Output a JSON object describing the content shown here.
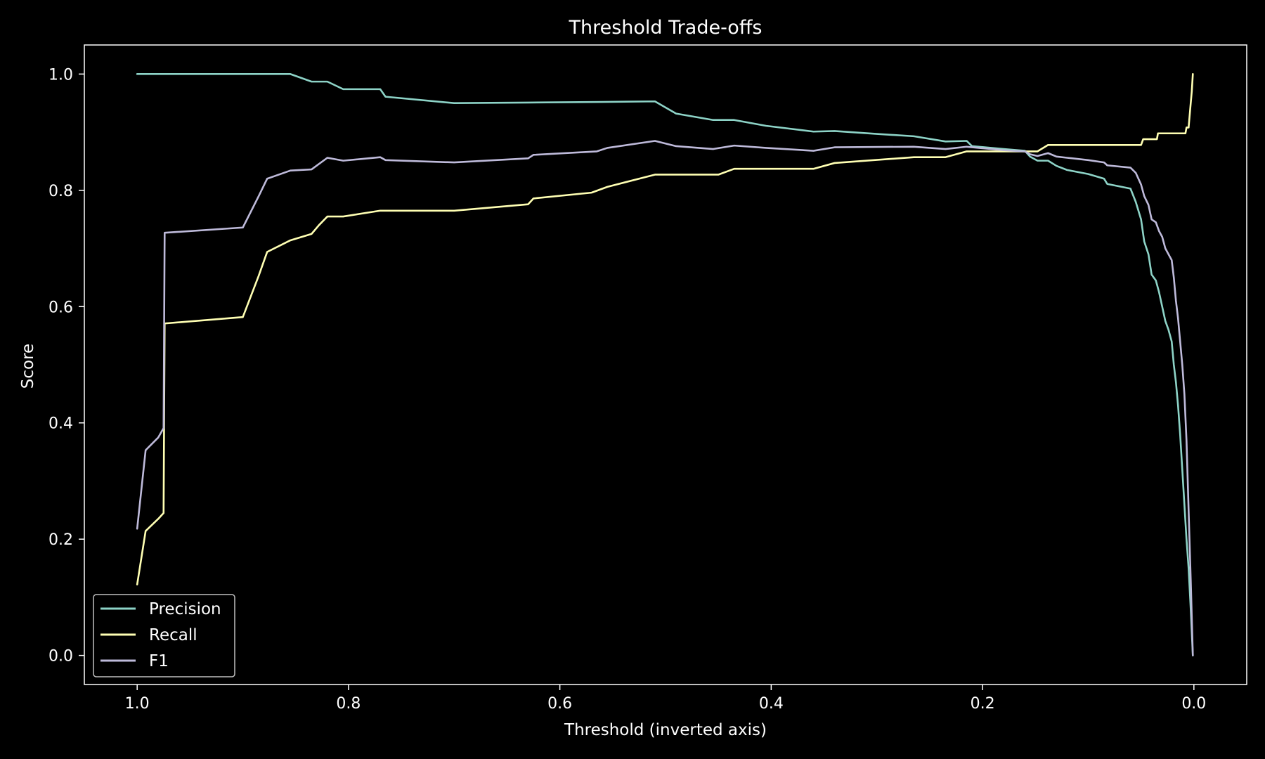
{
  "chart_data": {
    "type": "line",
    "title": "Threshold Trade-offs",
    "xlabel": "Threshold (inverted axis)",
    "ylabel": "Score",
    "x_inverted": true,
    "xlim": [
      1.05,
      -0.05
    ],
    "ylim": [
      -0.05,
      1.05
    ],
    "xticks": [
      "1.0",
      "0.8",
      "0.6",
      "0.4",
      "0.2",
      "0.0"
    ],
    "xtick_values": [
      1.0,
      0.8,
      0.6,
      0.4,
      0.2,
      0.0
    ],
    "yticks": [
      "0.0",
      "0.2",
      "0.4",
      "0.6",
      "0.8",
      "1.0"
    ],
    "ytick_values": [
      0.0,
      0.2,
      0.4,
      0.6,
      0.8,
      1.0
    ],
    "grid": false,
    "legend_position": "lower-left",
    "background": "#000000",
    "series": [
      {
        "name": "Precision",
        "color": "#8dd3c7",
        "points": [
          [
            1.0,
            1.0
          ],
          [
            0.95,
            1.0
          ],
          [
            0.9,
            1.0
          ],
          [
            0.855,
            1.0
          ],
          [
            0.835,
            0.987
          ],
          [
            0.82,
            0.987
          ],
          [
            0.805,
            0.974
          ],
          [
            0.77,
            0.974
          ],
          [
            0.765,
            0.961
          ],
          [
            0.7,
            0.95
          ],
          [
            0.63,
            0.951
          ],
          [
            0.56,
            0.952
          ],
          [
            0.51,
            0.953
          ],
          [
            0.49,
            0.932
          ],
          [
            0.455,
            0.921
          ],
          [
            0.435,
            0.921
          ],
          [
            0.405,
            0.911
          ],
          [
            0.36,
            0.901
          ],
          [
            0.34,
            0.902
          ],
          [
            0.3,
            0.897
          ],
          [
            0.265,
            0.893
          ],
          [
            0.235,
            0.884
          ],
          [
            0.215,
            0.885
          ],
          [
            0.21,
            0.876
          ],
          [
            0.18,
            0.871
          ],
          [
            0.16,
            0.868
          ],
          [
            0.155,
            0.858
          ],
          [
            0.148,
            0.851
          ],
          [
            0.138,
            0.851
          ],
          [
            0.13,
            0.842
          ],
          [
            0.12,
            0.835
          ],
          [
            0.1,
            0.828
          ],
          [
            0.085,
            0.82
          ],
          [
            0.082,
            0.811
          ],
          [
            0.06,
            0.803
          ],
          [
            0.055,
            0.78
          ],
          [
            0.05,
            0.75
          ],
          [
            0.047,
            0.712
          ],
          [
            0.043,
            0.69
          ],
          [
            0.04,
            0.655
          ],
          [
            0.036,
            0.645
          ],
          [
            0.033,
            0.625
          ],
          [
            0.03,
            0.6
          ],
          [
            0.027,
            0.575
          ],
          [
            0.024,
            0.56
          ],
          [
            0.021,
            0.54
          ],
          [
            0.019,
            0.5
          ],
          [
            0.017,
            0.47
          ],
          [
            0.015,
            0.43
          ],
          [
            0.013,
            0.38
          ],
          [
            0.011,
            0.32
          ],
          [
            0.009,
            0.26
          ],
          [
            0.007,
            0.2
          ],
          [
            0.005,
            0.15
          ],
          [
            0.003,
            0.08
          ],
          [
            0.001,
            0.0
          ]
        ]
      },
      {
        "name": "Recall",
        "color": "#ffffb3",
        "points": [
          [
            1.0,
            0.122
          ],
          [
            0.992,
            0.214
          ],
          [
            0.98,
            0.235
          ],
          [
            0.975,
            0.245
          ],
          [
            0.974,
            0.571
          ],
          [
            0.9,
            0.582
          ],
          [
            0.885,
            0.653
          ],
          [
            0.877,
            0.694
          ],
          [
            0.855,
            0.714
          ],
          [
            0.835,
            0.725
          ],
          [
            0.828,
            0.74
          ],
          [
            0.82,
            0.755
          ],
          [
            0.805,
            0.755
          ],
          [
            0.77,
            0.765
          ],
          [
            0.7,
            0.765
          ],
          [
            0.63,
            0.776
          ],
          [
            0.625,
            0.786
          ],
          [
            0.57,
            0.796
          ],
          [
            0.555,
            0.806
          ],
          [
            0.51,
            0.827
          ],
          [
            0.45,
            0.827
          ],
          [
            0.435,
            0.837
          ],
          [
            0.36,
            0.837
          ],
          [
            0.34,
            0.847
          ],
          [
            0.265,
            0.857
          ],
          [
            0.235,
            0.857
          ],
          [
            0.215,
            0.867
          ],
          [
            0.155,
            0.867
          ],
          [
            0.148,
            0.867
          ],
          [
            0.138,
            0.878
          ],
          [
            0.05,
            0.878
          ],
          [
            0.048,
            0.888
          ],
          [
            0.035,
            0.888
          ],
          [
            0.034,
            0.898
          ],
          [
            0.008,
            0.898
          ],
          [
            0.007,
            0.908
          ],
          [
            0.005,
            0.908
          ],
          [
            0.003,
            0.95
          ],
          [
            0.002,
            0.97
          ],
          [
            0.001,
            1.0
          ]
        ]
      },
      {
        "name": "F1",
        "color": "#bebada",
        "points": [
          [
            1.0,
            0.218
          ],
          [
            0.992,
            0.353
          ],
          [
            0.98,
            0.375
          ],
          [
            0.975,
            0.391
          ],
          [
            0.974,
            0.727
          ],
          [
            0.9,
            0.736
          ],
          [
            0.885,
            0.79
          ],
          [
            0.877,
            0.82
          ],
          [
            0.855,
            0.834
          ],
          [
            0.835,
            0.836
          ],
          [
            0.82,
            0.856
          ],
          [
            0.805,
            0.851
          ],
          [
            0.77,
            0.857
          ],
          [
            0.765,
            0.852
          ],
          [
            0.7,
            0.848
          ],
          [
            0.63,
            0.855
          ],
          [
            0.625,
            0.861
          ],
          [
            0.565,
            0.867
          ],
          [
            0.555,
            0.873
          ],
          [
            0.51,
            0.885
          ],
          [
            0.49,
            0.876
          ],
          [
            0.455,
            0.871
          ],
          [
            0.435,
            0.877
          ],
          [
            0.405,
            0.873
          ],
          [
            0.36,
            0.868
          ],
          [
            0.34,
            0.874
          ],
          [
            0.265,
            0.875
          ],
          [
            0.235,
            0.871
          ],
          [
            0.215,
            0.875
          ],
          [
            0.18,
            0.869
          ],
          [
            0.16,
            0.867
          ],
          [
            0.155,
            0.862
          ],
          [
            0.148,
            0.859
          ],
          [
            0.138,
            0.864
          ],
          [
            0.13,
            0.858
          ],
          [
            0.12,
            0.856
          ],
          [
            0.1,
            0.852
          ],
          [
            0.085,
            0.848
          ],
          [
            0.082,
            0.843
          ],
          [
            0.06,
            0.839
          ],
          [
            0.055,
            0.83
          ],
          [
            0.05,
            0.81
          ],
          [
            0.047,
            0.79
          ],
          [
            0.043,
            0.775
          ],
          [
            0.04,
            0.75
          ],
          [
            0.036,
            0.745
          ],
          [
            0.033,
            0.73
          ],
          [
            0.03,
            0.72
          ],
          [
            0.027,
            0.7
          ],
          [
            0.024,
            0.69
          ],
          [
            0.021,
            0.68
          ],
          [
            0.019,
            0.65
          ],
          [
            0.017,
            0.61
          ],
          [
            0.015,
            0.58
          ],
          [
            0.013,
            0.54
          ],
          [
            0.011,
            0.5
          ],
          [
            0.009,
            0.45
          ],
          [
            0.007,
            0.37
          ],
          [
            0.005,
            0.25
          ],
          [
            0.003,
            0.13
          ],
          [
            0.001,
            0.0
          ]
        ]
      }
    ]
  }
}
